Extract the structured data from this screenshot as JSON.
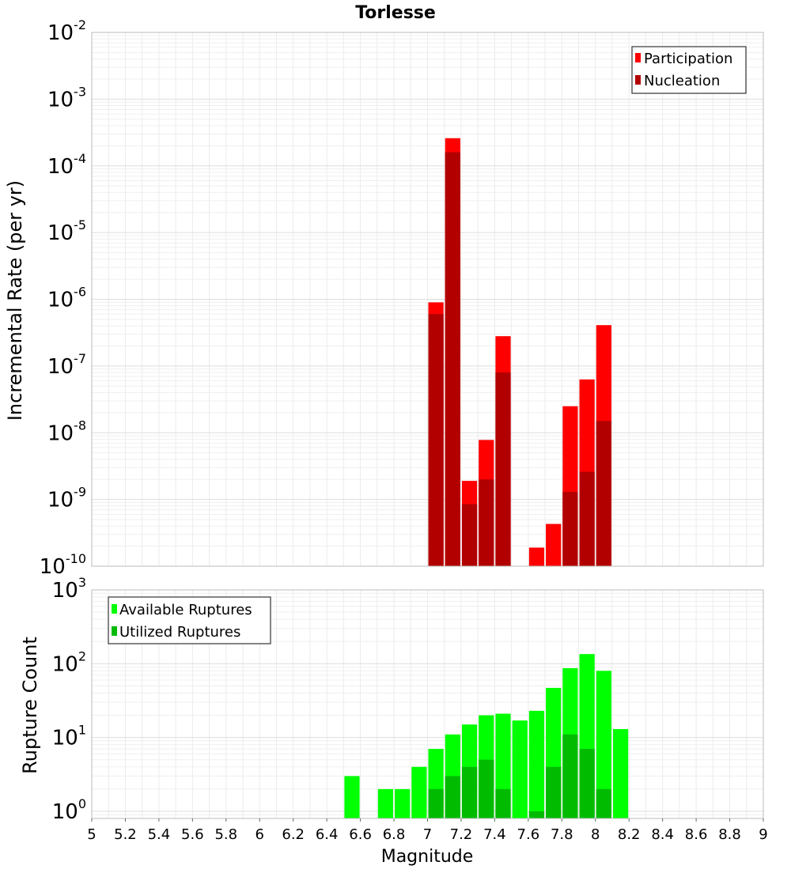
{
  "chart_data": [
    {
      "type": "bar",
      "title": "Torlesse",
      "ylabel": "Incremental Rate (per yr)",
      "xlabel": "",
      "yscale": "log",
      "ylim": [
        1e-10,
        0.01
      ],
      "xlim": [
        5,
        9
      ],
      "bin_width": 0.1,
      "grid": true,
      "legend_position": "top-right",
      "x": [
        7.05,
        7.15,
        7.25,
        7.35,
        7.45,
        7.55,
        7.65,
        7.75,
        7.85,
        7.95,
        8.05
      ],
      "series": [
        {
          "name": "Participation",
          "color": "#ff0000",
          "values": [
            9e-07,
            0.00026,
            1.9e-09,
            7.8e-09,
            2.8e-07,
            0,
            1.9e-10,
            4.3e-10,
            2.5e-08,
            6.3e-08,
            4.1e-07
          ]
        },
        {
          "name": "Nucleation",
          "color": "#b20000",
          "values": [
            6e-07,
            0.00016,
            8.5e-10,
            2e-09,
            8e-08,
            0,
            0,
            0,
            1.3e-09,
            2.6e-09,
            1.5e-08
          ]
        }
      ]
    },
    {
      "type": "bar",
      "title": "",
      "ylabel": "Rupture Count",
      "xlabel": "Magnitude",
      "yscale": "log",
      "ylim": [
        0.8,
        1000
      ],
      "xlim": [
        5,
        9
      ],
      "bin_width": 0.1,
      "grid": true,
      "legend_position": "top-left",
      "xticks": [
        "5",
        "5.2",
        "5.4",
        "5.6",
        "5.8",
        "6",
        "6.2",
        "6.4",
        "6.6",
        "6.8",
        "7",
        "7.2",
        "7.4",
        "7.6",
        "7.8",
        "8",
        "8.2",
        "8.4",
        "8.6",
        "8.8",
        "9"
      ],
      "x": [
        6.55,
        6.75,
        6.85,
        6.95,
        7.05,
        7.15,
        7.25,
        7.35,
        7.45,
        7.55,
        7.65,
        7.75,
        7.85,
        7.95,
        8.05,
        8.15
      ],
      "series": [
        {
          "name": "Available Ruptures",
          "color": "#00ff00",
          "values": [
            3,
            2,
            2,
            4,
            7,
            11,
            15,
            20,
            21,
            17,
            23,
            47,
            87,
            135,
            80,
            13
          ]
        },
        {
          "name": "Utilized Ruptures",
          "color": "#00bb00",
          "values": [
            0,
            0,
            0,
            0,
            2,
            3,
            4,
            5,
            2,
            0,
            1,
            4,
            11,
            7,
            2,
            0
          ]
        }
      ]
    }
  ]
}
